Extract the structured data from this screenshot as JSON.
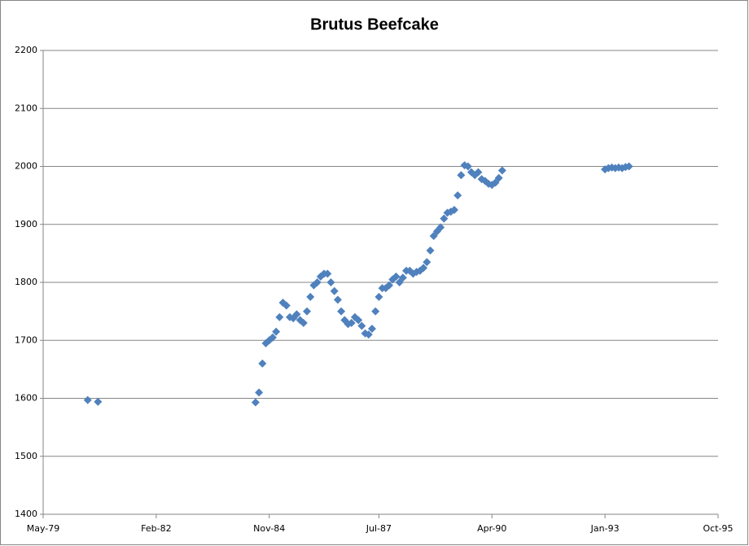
{
  "chart_data": {
    "type": "scatter",
    "title": "Brutus Beefcake",
    "x": [
      "1980-06",
      "1980-09",
      "1984-07",
      "1984-08",
      "1984-09",
      "1984-10",
      "1984-11",
      "1984-12",
      "1985-01",
      "1985-02",
      "1985-03",
      "1985-04",
      "1985-05",
      "1985-06",
      "1985-07",
      "1985-08",
      "1985-09",
      "1985-10",
      "1985-11",
      "1985-12",
      "1986-01",
      "1986-02",
      "1986-03",
      "1986-04",
      "1986-05",
      "1986-06",
      "1986-07",
      "1986-08",
      "1986-09",
      "1986-10",
      "1986-11",
      "1986-12",
      "1987-01",
      "1987-02",
      "1987-03",
      "1987-04",
      "1987-05",
      "1987-06",
      "1987-07",
      "1987-08",
      "1987-09",
      "1987-10",
      "1987-11",
      "1987-12",
      "1988-01",
      "1988-02",
      "1988-03",
      "1988-04",
      "1988-05",
      "1988-06",
      "1988-07",
      "1988-08",
      "1988-09",
      "1988-10",
      "1988-11",
      "1988-12",
      "1989-01",
      "1989-02",
      "1989-03",
      "1989-04",
      "1989-05",
      "1989-06",
      "1989-07",
      "1989-08",
      "1989-09",
      "1989-10",
      "1989-11",
      "1989-12",
      "1990-01",
      "1990-02",
      "1990-03",
      "1990-04",
      "1990-05",
      "1990-06",
      "1990-07",
      "1993-01",
      "1993-02",
      "1993-03",
      "1993-04",
      "1993-05",
      "1993-06",
      "1993-07",
      "1993-08"
    ],
    "values": [
      1597,
      1594,
      1593,
      1610,
      1660,
      1695,
      1700,
      1705,
      1715,
      1740,
      1765,
      1760,
      1740,
      1738,
      1745,
      1735,
      1730,
      1750,
      1775,
      1795,
      1800,
      1810,
      1815,
      1815,
      1800,
      1785,
      1770,
      1750,
      1735,
      1728,
      1730,
      1740,
      1735,
      1725,
      1712,
      1710,
      1720,
      1750,
      1775,
      1790,
      1790,
      1795,
      1805,
      1810,
      1800,
      1808,
      1820,
      1820,
      1815,
      1818,
      1820,
      1825,
      1835,
      1855,
      1880,
      1888,
      1895,
      1910,
      1920,
      1922,
      1925,
      1950,
      1985,
      2002,
      2000,
      1990,
      1985,
      1990,
      1978,
      1975,
      1970,
      1968,
      1972,
      1980,
      1993,
      1995,
      1997,
      1998,
      1997,
      1998,
      1997,
      1999,
      2000
    ],
    "color": "#4f81bd",
    "xlim": [
      "1979-05",
      "1995-10"
    ],
    "xticks": [
      {
        "value": "1979-05",
        "label": "May-79"
      },
      {
        "value": "1982-02",
        "label": "Feb-82"
      },
      {
        "value": "1984-11",
        "label": "Nov-84"
      },
      {
        "value": "1987-07",
        "label": "Jul-87"
      },
      {
        "value": "1990-04",
        "label": "Apr-90"
      },
      {
        "value": "1993-01",
        "label": "Jan-93"
      },
      {
        "value": "1995-10",
        "label": "Oct-95"
      }
    ],
    "ylim": [
      1400,
      2200
    ],
    "yticks": [
      1400,
      1500,
      1600,
      1700,
      1800,
      1900,
      2000,
      2100,
      2200
    ],
    "grid": true
  }
}
